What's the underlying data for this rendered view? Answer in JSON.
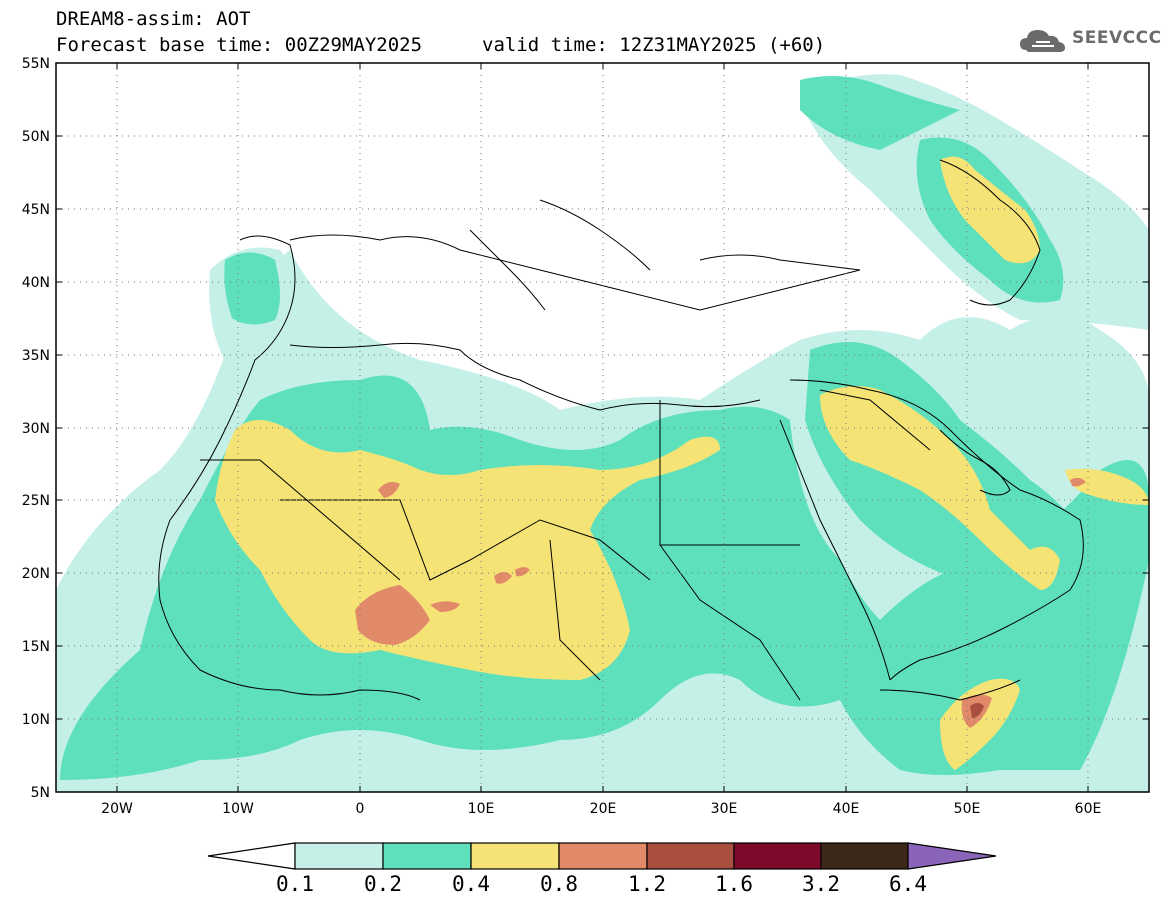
{
  "header": {
    "title": "DREAM8-assim: AOT",
    "base_time": "Forecast base time: 00Z29MAY2025",
    "valid_time": "valid time: 12Z31MAY2025 (+60)"
  },
  "logo": {
    "text": "SEEVCCC",
    "icon": "cloud-icon"
  },
  "map": {
    "lat_labels": [
      "55N",
      "50N",
      "45N",
      "40N",
      "35N",
      "30N",
      "25N",
      "20N",
      "15N",
      "10N",
      "5N"
    ],
    "lon_labels": [
      "20W",
      "10W",
      "0",
      "10E",
      "20E",
      "30E",
      "40E",
      "50E",
      "60E"
    ],
    "lat_range": [
      5,
      55
    ],
    "lon_range": [
      -25,
      65
    ],
    "grid": "dotted"
  },
  "colorbar": {
    "labels": [
      "0.1",
      "0.2",
      "0.4",
      "0.8",
      "1.2",
      "1.6",
      "3.2",
      "6.4"
    ],
    "colors": [
      "#c4f0e8",
      "#5ee0bc",
      "#f5e475",
      "#e08a6a",
      "#a84f3f",
      "#7d0a2a",
      "#3b2818",
      "#8a64b8"
    ]
  },
  "palette": {
    "aot_0_1": "#c4f0e8",
    "aot_0_2": "#5ee0bc",
    "aot_0_4": "#f5e475",
    "aot_0_8": "#e08a6a",
    "aot_1_2": "#a84f3f"
  }
}
